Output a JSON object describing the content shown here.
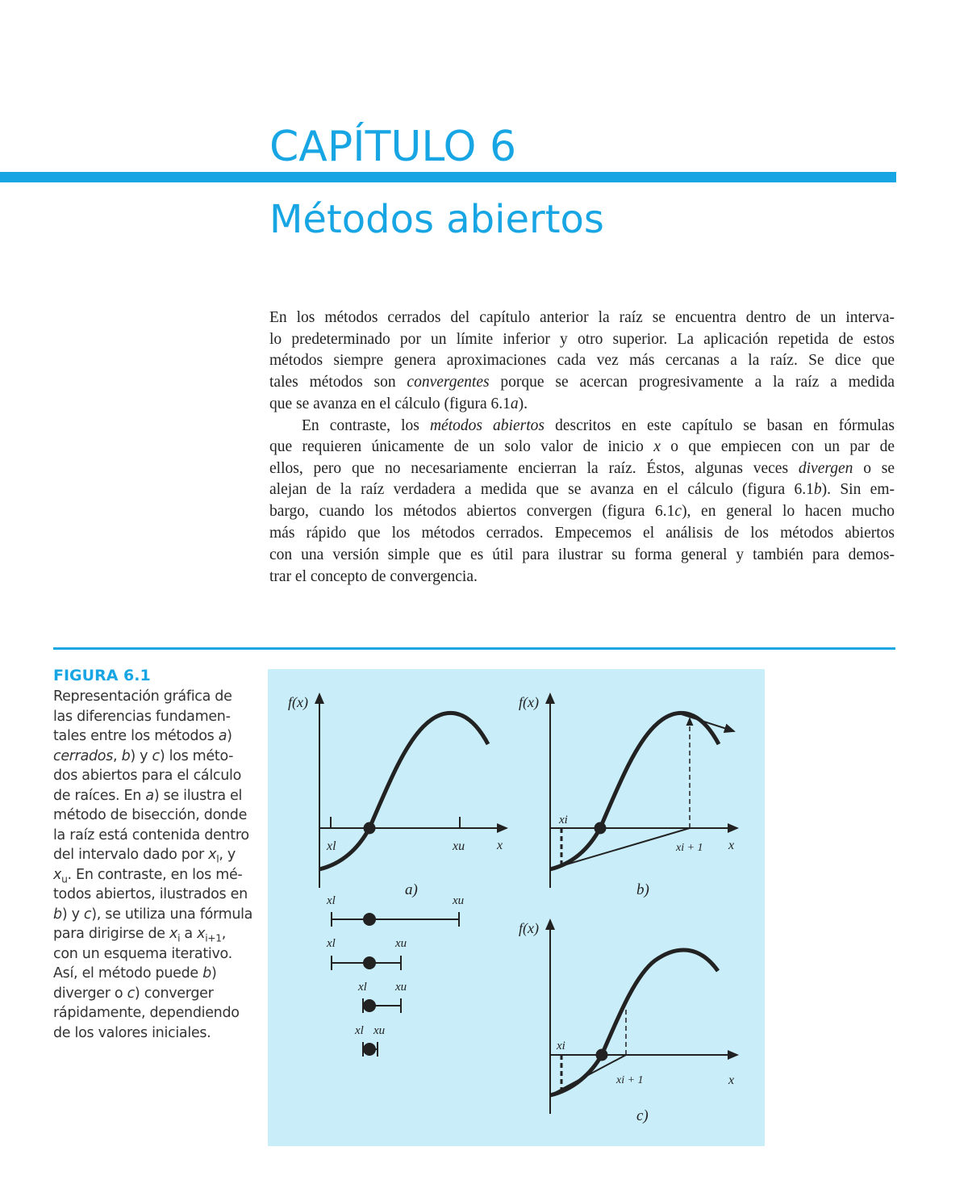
{
  "header": {
    "chapter": "CAPÍTULO 6",
    "title": "Métodos abiertos"
  },
  "body": {
    "lines": [
      [
        {
          "t": "En los métodos cerrados del capítulo anterior la raíz se encuentra dentro de un interva-"
        }
      ],
      [
        {
          "t": "lo predeterminado por un límite inferior y otro superior. La aplicación repetida de estos"
        }
      ],
      [
        {
          "t": "métodos siempre genera aproximaciones cada vez más cercanas a la raíz. Se dice que"
        }
      ],
      [
        {
          "t": "tales métodos son "
        },
        {
          "t": "convergentes",
          "i": true
        },
        {
          "t": " porque se acercan progresivamente a la raíz a medida"
        }
      ],
      [
        {
          "t": "que se avanza en el cálculo (figura 6.1"
        },
        {
          "t": "a",
          "i": true
        },
        {
          "t": ")."
        }
      ],
      [
        {
          "t": "En contraste, los "
        },
        {
          "t": "métodos abiertos",
          "i": true
        },
        {
          "t": " descritos en este capítulo se basan en fórmulas"
        }
      ],
      [
        {
          "t": "que requieren únicamente de un solo valor de inicio "
        },
        {
          "t": "x",
          "i": true
        },
        {
          "t": " o que empiecen con un par de"
        }
      ],
      [
        {
          "t": "ellos, pero que no necesariamente encierran la raíz. Éstos, algunas veces "
        },
        {
          "t": "divergen",
          "i": true
        },
        {
          "t": " o se"
        }
      ],
      [
        {
          "t": "alejan de la raíz verdadera a medida que se avanza en el cálculo (figura 6.1"
        },
        {
          "t": "b",
          "i": true
        },
        {
          "t": "). Sin em-"
        }
      ],
      [
        {
          "t": "bargo, cuando los métodos abiertos convergen (figura 6.1"
        },
        {
          "t": "c",
          "i": true
        },
        {
          "t": "), en general lo hacen mucho"
        }
      ],
      [
        {
          "t": "más rápido que los métodos cerrados. Empecemos el análisis de los métodos abiertos"
        }
      ],
      [
        {
          "t": "con una versión simple que es útil para ilustrar su forma general y también para demos-"
        }
      ],
      [
        {
          "t": "trar el concepto de convergencia."
        }
      ]
    ]
  },
  "figure": {
    "label": "FIGURA 6.1",
    "caption": [
      [
        {
          "t": "Representación gráfica de"
        }
      ],
      [
        {
          "t": "las diferencias fundamen-"
        }
      ],
      [
        {
          "t": "tales entre los métodos "
        },
        {
          "t": "a",
          "i": true
        },
        {
          "t": ")"
        }
      ],
      [
        {
          "t": "cerrados",
          "i": true
        },
        {
          "t": ", "
        },
        {
          "t": "b",
          "i": true
        },
        {
          "t": ") y "
        },
        {
          "t": "c",
          "i": true
        },
        {
          "t": ") los méto-"
        }
      ],
      [
        {
          "t": "dos abiertos para el cálculo"
        }
      ],
      [
        {
          "t": "de raíces. En "
        },
        {
          "t": "a",
          "i": true
        },
        {
          "t": ") se ilustra el"
        }
      ],
      [
        {
          "t": "método de bisección, donde"
        }
      ],
      [
        {
          "t": "la raíz está contenida dentro"
        }
      ],
      [
        {
          "t": "del intervalo dado por "
        },
        {
          "t": "x",
          "i": true
        },
        {
          "t": "l",
          "sub": true
        },
        {
          "t": ", y"
        }
      ],
      [
        {
          "t": "x",
          "i": true
        },
        {
          "t": "u",
          "sub": true
        },
        {
          "t": ". En contraste, en los mé-"
        }
      ],
      [
        {
          "t": "todos abiertos, ilustrados en"
        }
      ],
      [
        {
          "t": "b",
          "i": true
        },
        {
          "t": ") y "
        },
        {
          "t": "c",
          "i": true
        },
        {
          "t": "), se utiliza una fórmula"
        }
      ],
      [
        {
          "t": "para dirigirse de "
        },
        {
          "t": "x",
          "i": true
        },
        {
          "t": "i",
          "sub": true
        },
        {
          "t": " a "
        },
        {
          "t": "x",
          "i": true
        },
        {
          "t": "i+1",
          "sub": true
        },
        {
          "t": ","
        }
      ],
      [
        {
          "t": "con un esquema iterativo."
        }
      ],
      [
        {
          "t": "Así, el método puede "
        },
        {
          "t": "b",
          "i": true
        },
        {
          "t": ")"
        }
      ],
      [
        {
          "t": "diverger o "
        },
        {
          "t": "c",
          "i": true
        },
        {
          "t": ") converger"
        }
      ],
      [
        {
          "t": "rápidamente, dependiendo"
        }
      ],
      [
        {
          "t": "de los valores iniciales."
        }
      ]
    ],
    "panels": {
      "a": {
        "ylabel": "f(x)",
        "xl": "xl",
        "xu": "xu",
        "x": "x",
        "tag": "a)"
      },
      "b": {
        "ylabel": "f(x)",
        "xi": "xi",
        "xi1": "xi + 1",
        "x": "x",
        "tag": "b)"
      },
      "c": {
        "ylabel": "f(x)",
        "xi": "xi",
        "xi1": "xi + 1",
        "x": "x",
        "tag": "c)"
      }
    },
    "bisection_labels": {
      "xl": "xl",
      "xu": "xu"
    }
  },
  "colors": {
    "accent": "#17a6e3",
    "figure_bg": "#c9edf9",
    "text": "#222222"
  }
}
